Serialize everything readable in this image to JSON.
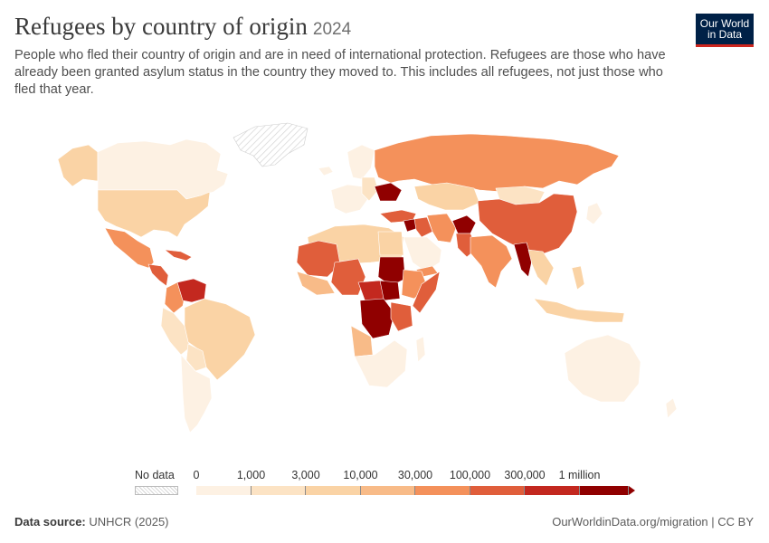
{
  "header": {
    "title": "Refugees by country of origin",
    "year": "2024",
    "subtitle": "People who fled their country of origin and are in need of international protection. Refugees are those who have already been granted asylum status in the country they moved to. This includes all refugees, not just those who fled that year."
  },
  "logo": {
    "line1": "Our World",
    "line2": "in Data",
    "bg": "#002147",
    "accent": "#ce261e"
  },
  "legend": {
    "no_data_label": "No data",
    "tick_labels": [
      "0",
      "1,000",
      "3,000",
      "10,000",
      "30,000",
      "100,000",
      "300,000",
      "1 million"
    ],
    "bin_colors": [
      "#fdf1e3",
      "#fce3c4",
      "#fad3a5",
      "#f8bb88",
      "#f4915b",
      "#e05e3b",
      "#c3281f",
      "#900000"
    ]
  },
  "map": {
    "type": "choropleth",
    "projection": "robinson-like world",
    "regions": [
      {
        "name": "Canada",
        "color": "#fdf1e3"
      },
      {
        "name": "United States",
        "color": "#fad3a5"
      },
      {
        "name": "Mexico",
        "color": "#f4915b"
      },
      {
        "name": "Central America",
        "color": "#e05e3b"
      },
      {
        "name": "Venezuela",
        "color": "#c3281f"
      },
      {
        "name": "Colombia",
        "color": "#f4915b"
      },
      {
        "name": "Brazil",
        "color": "#fad3a5"
      },
      {
        "name": "Argentina",
        "color": "#fdf1e3"
      },
      {
        "name": "Greenland",
        "color": "no-data"
      },
      {
        "name": "Russia",
        "color": "#f4915b"
      },
      {
        "name": "Ukraine",
        "color": "#900000"
      },
      {
        "name": "Syria",
        "color": "#900000"
      },
      {
        "name": "Afghanistan",
        "color": "#900000"
      },
      {
        "name": "China",
        "color": "#e05e3b"
      },
      {
        "name": "India",
        "color": "#f4915b"
      },
      {
        "name": "Myanmar",
        "color": "#900000"
      },
      {
        "name": "Sudan",
        "color": "#900000"
      },
      {
        "name": "South Sudan",
        "color": "#900000"
      },
      {
        "name": "DR Congo",
        "color": "#900000"
      },
      {
        "name": "Somalia",
        "color": "#e05e3b"
      },
      {
        "name": "Australia",
        "color": "#fdf1e3"
      }
    ]
  },
  "footer": {
    "source_label": "Data source:",
    "source_value": "UNHCR (2025)",
    "link": "OurWorldinData.org/migration | CC BY"
  }
}
